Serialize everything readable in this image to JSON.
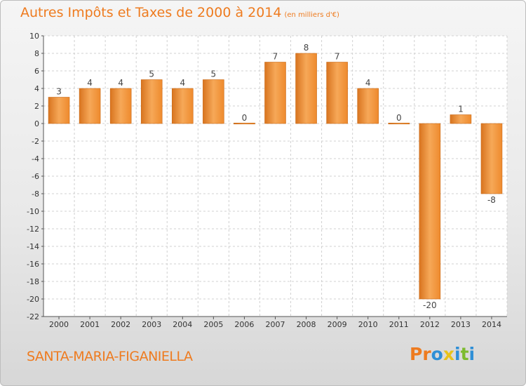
{
  "title": "Autres Impôts et Taxes de 2000 à 2014",
  "unit_note": "(en milliers d'€)",
  "commune": "SANTA-MARIA-FIGANIELLA",
  "logo": {
    "letters": [
      "P",
      "r",
      "o",
      "x",
      "i",
      "t",
      "i"
    ],
    "colors": [
      "#ee7b1f",
      "#ee7b1f",
      "#2f8fd6",
      "#e8c21a",
      "#2f8fd6",
      "#7dbb2f",
      "#2f8fd6"
    ]
  },
  "colors": {
    "bar": "#ee8a2d",
    "bar_light": "#f6a858",
    "bar_dark": "#d8741f",
    "title": "#ee7b1f"
  },
  "chart_data": {
    "type": "bar",
    "title": "Autres Impôts et Taxes de 2000 à 2014",
    "categories": [
      "2000",
      "2001",
      "2002",
      "2003",
      "2004",
      "2005",
      "2006",
      "2007",
      "2008",
      "2009",
      "2010",
      "2011",
      "2012",
      "2013",
      "2014"
    ],
    "values": [
      3,
      4,
      4,
      5,
      4,
      5,
      0,
      7,
      8,
      7,
      4,
      0,
      -20,
      1,
      -8
    ],
    "ylim": [
      -22,
      10
    ],
    "yticks": [
      10,
      8,
      6,
      4,
      2,
      0,
      -2,
      -4,
      -6,
      -8,
      -10,
      -12,
      -14,
      -16,
      -18,
      -20,
      -22
    ],
    "grid": true
  }
}
